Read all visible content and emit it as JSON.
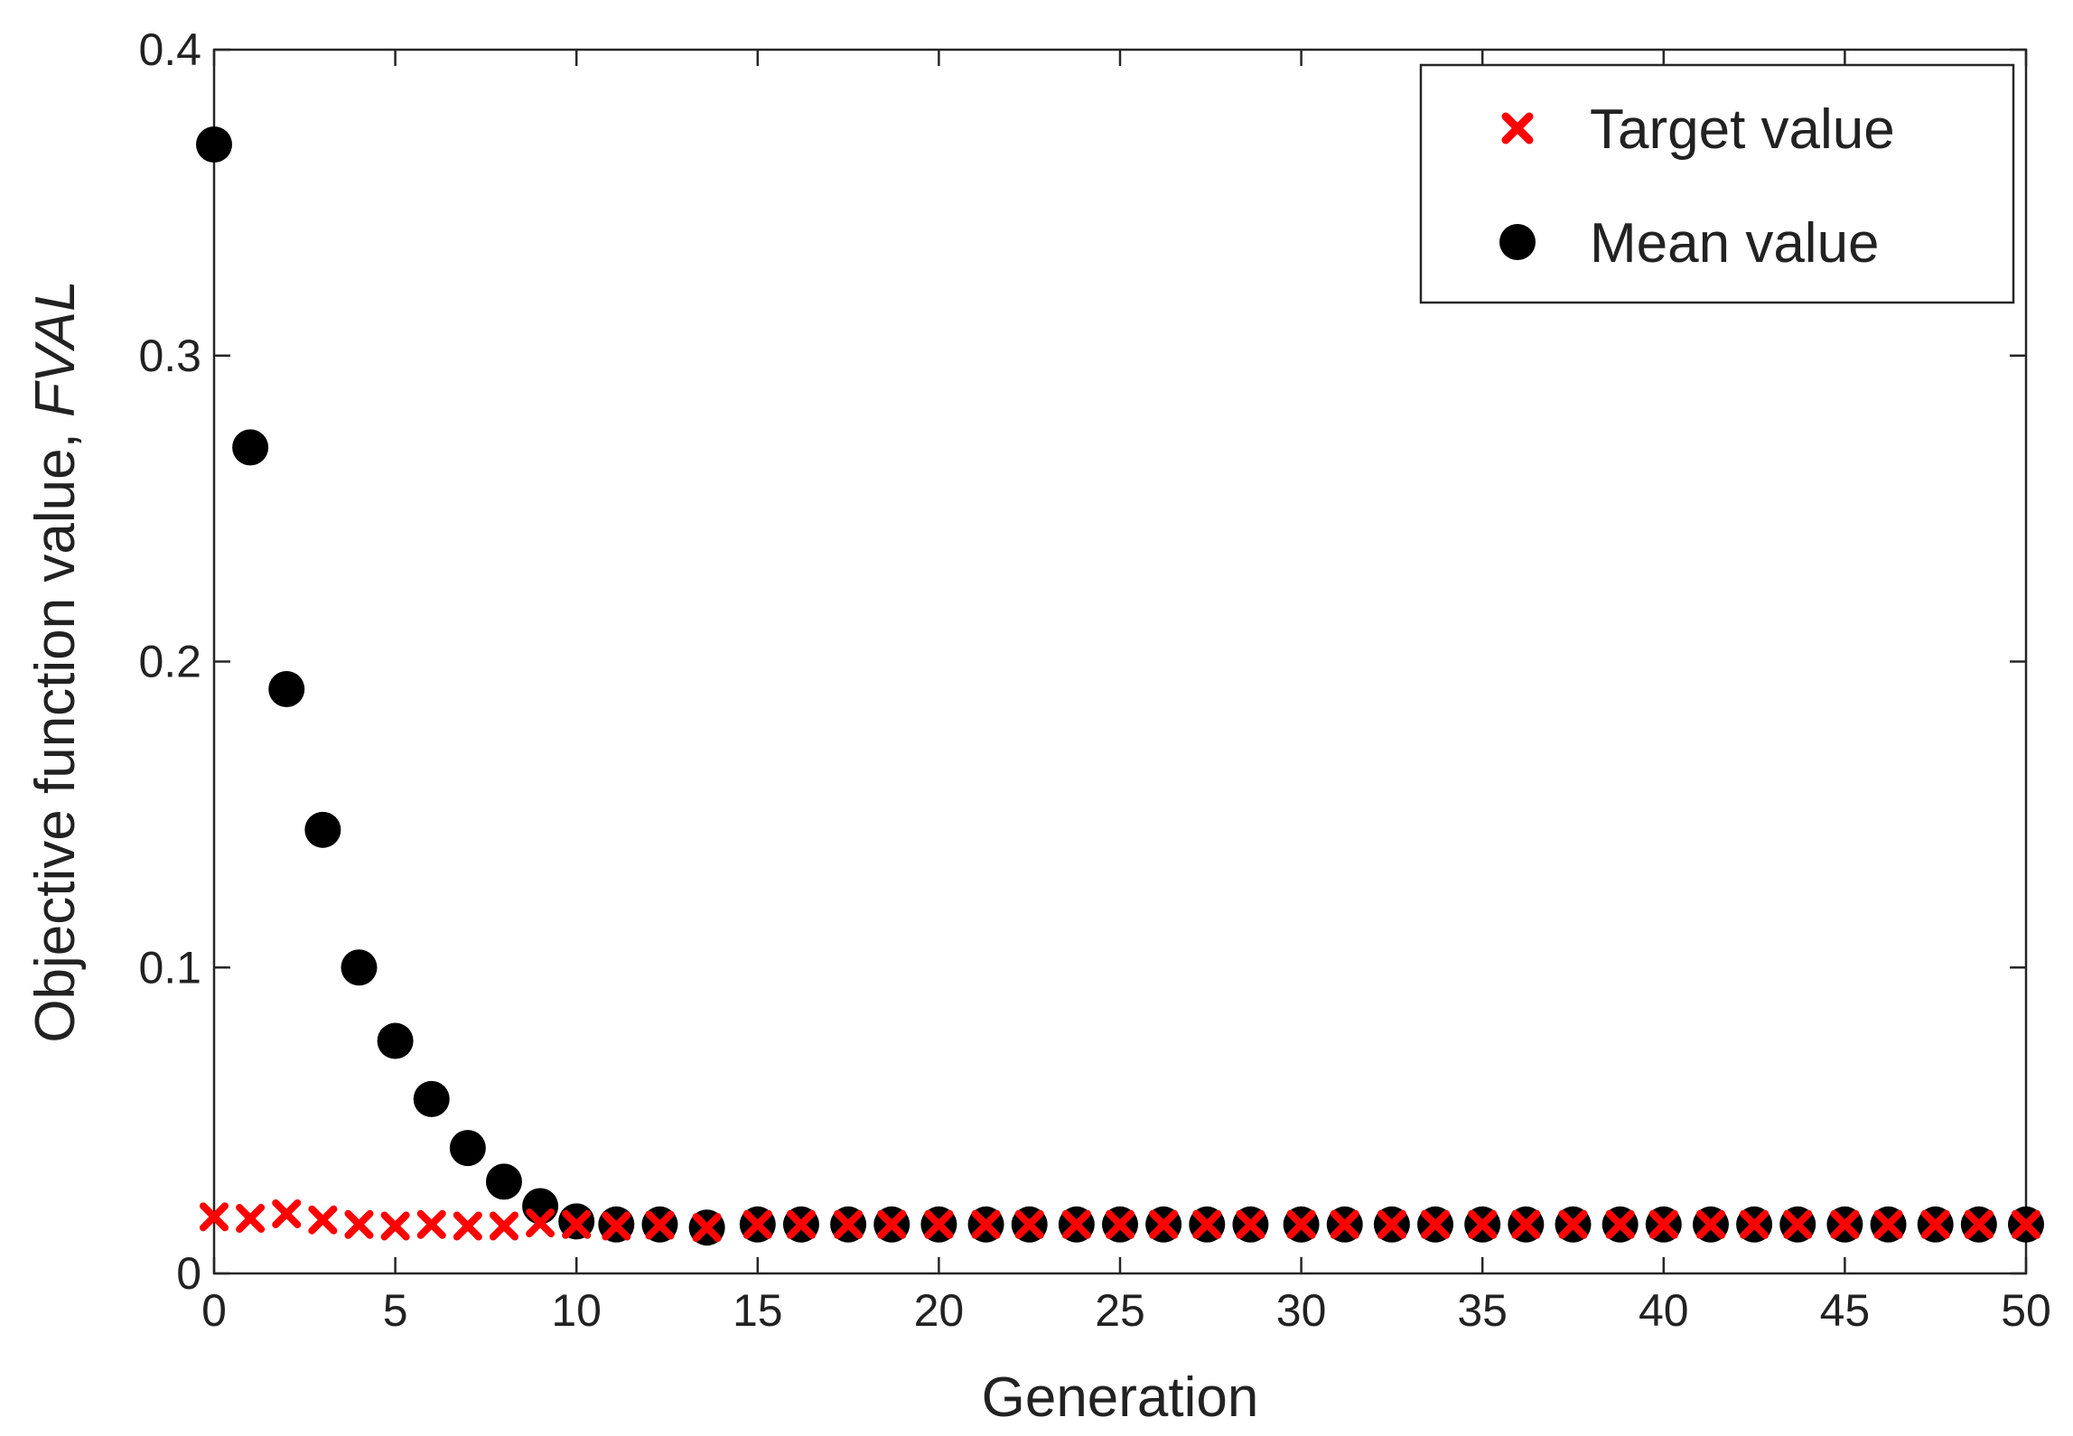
{
  "chart_data": {
    "type": "scatter",
    "xlabel": "Generation",
    "ylabel_prefix": "Objective function value, ",
    "ylabel_italic": "FVAL",
    "xlim": [
      0,
      50
    ],
    "ylim": [
      0,
      0.4
    ],
    "xticks": [
      0,
      5,
      10,
      15,
      20,
      25,
      30,
      35,
      40,
      45,
      50
    ],
    "yticks": [
      0,
      0.1,
      0.2,
      0.3,
      0.4
    ],
    "ytick_labels": [
      "0",
      "0.1",
      "0.2",
      "0.3",
      "0.4"
    ],
    "grid": false,
    "legend_position": "top-right",
    "series": [
      {
        "name": "Target value",
        "marker": "x",
        "color": "#ff0000",
        "x": [
          0,
          1,
          2,
          3,
          4,
          5,
          6,
          7,
          8,
          9,
          10,
          11.1,
          12.3,
          13.6,
          15,
          16.2,
          17.5,
          18.7,
          20,
          21.3,
          22.5,
          23.8,
          25,
          26.2,
          27.4,
          28.6,
          30,
          31.2,
          32.5,
          33.7,
          35,
          36.2,
          37.5,
          38.8,
          40,
          41.3,
          42.5,
          43.7,
          45,
          46.2,
          47.5,
          48.7,
          50
        ],
        "y": [
          0.0185,
          0.018,
          0.0195,
          0.0175,
          0.016,
          0.0155,
          0.016,
          0.0155,
          0.0155,
          0.0165,
          0.016,
          0.0155,
          0.0158,
          0.015,
          0.016,
          0.016,
          0.016,
          0.016,
          0.016,
          0.016,
          0.016,
          0.016,
          0.016,
          0.016,
          0.016,
          0.016,
          0.016,
          0.016,
          0.016,
          0.016,
          0.016,
          0.016,
          0.016,
          0.016,
          0.016,
          0.016,
          0.016,
          0.016,
          0.016,
          0.016,
          0.016,
          0.016,
          0.016
        ]
      },
      {
        "name": "Mean value",
        "marker": "circle",
        "color": "#000000",
        "x": [
          0,
          1,
          2,
          3,
          4,
          5,
          6,
          7,
          8,
          9,
          10,
          11.1,
          12.3,
          13.6,
          15,
          16.2,
          17.5,
          18.7,
          20,
          21.3,
          22.5,
          23.8,
          25,
          26.2,
          27.4,
          28.6,
          30,
          31.2,
          32.5,
          33.7,
          35,
          36.2,
          37.5,
          38.8,
          40,
          41.3,
          42.5,
          43.7,
          45,
          46.2,
          47.5,
          48.7,
          50
        ],
        "y": [
          0.369,
          0.27,
          0.191,
          0.145,
          0.1,
          0.076,
          0.057,
          0.041,
          0.03,
          0.022,
          0.017,
          0.016,
          0.016,
          0.015,
          0.016,
          0.016,
          0.016,
          0.016,
          0.016,
          0.016,
          0.016,
          0.016,
          0.016,
          0.016,
          0.016,
          0.016,
          0.016,
          0.016,
          0.016,
          0.016,
          0.016,
          0.016,
          0.016,
          0.016,
          0.016,
          0.016,
          0.016,
          0.016,
          0.016,
          0.016,
          0.016,
          0.016,
          0.016
        ]
      }
    ]
  }
}
